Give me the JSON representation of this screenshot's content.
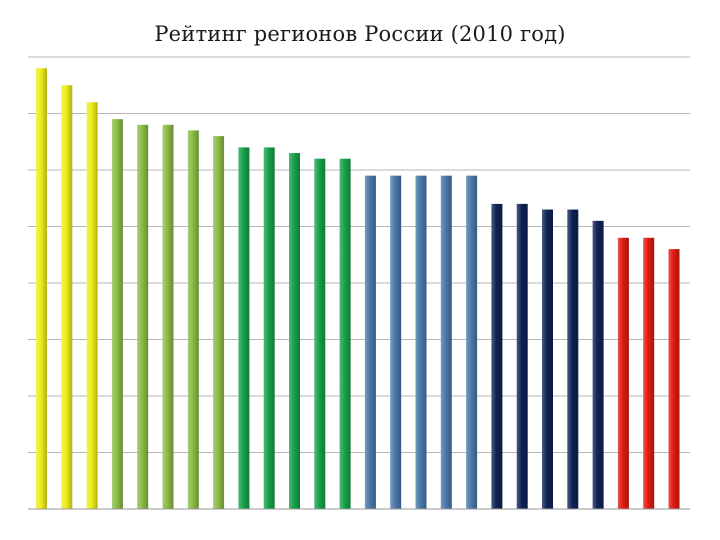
{
  "chart_data": {
    "type": "bar",
    "title": "Рейтинг регионов России (2010 год)",
    "xlabel": "",
    "ylabel": "",
    "ylim": [
      0,
      8
    ],
    "grid": true,
    "legend": "none",
    "categories": [
      "",
      "",
      "",
      "",
      "",
      "",
      "",
      "",
      "",
      "",
      "",
      "",
      "",
      "",
      "",
      "",
      "",
      "",
      "",
      "",
      "",
      "",
      "",
      "",
      "",
      ""
    ],
    "series": [
      {
        "values": [
          7.8,
          7.5,
          7.2,
          6.9,
          6.8,
          6.8,
          6.7,
          6.6,
          6.4,
          6.4,
          6.3,
          6.2,
          6.2,
          5.9,
          5.9,
          5.9,
          5.9,
          5.9,
          5.4,
          5.4,
          5.3,
          5.3,
          5.1,
          4.8,
          4.8,
          4.6
        ],
        "colors": [
          "#ecec1a",
          "#ecec1a",
          "#ecec1a",
          "#8bbb46",
          "#8bbb46",
          "#8bbb46",
          "#8bbb46",
          "#8bbb46",
          "#16a14a",
          "#16a14a",
          "#16a14a",
          "#16a14a",
          "#16a14a",
          "#4a78aa",
          "#4a78aa",
          "#4a78aa",
          "#4a78aa",
          "#4a78aa",
          "#0e2355",
          "#0e2355",
          "#0e2355",
          "#0e2355",
          "#0e2355",
          "#e01a12",
          "#e01a12",
          "#e01a12"
        ]
      }
    ]
  },
  "colors": {
    "gridline": "#b7b7b7",
    "axis": "#9a9a9a"
  }
}
